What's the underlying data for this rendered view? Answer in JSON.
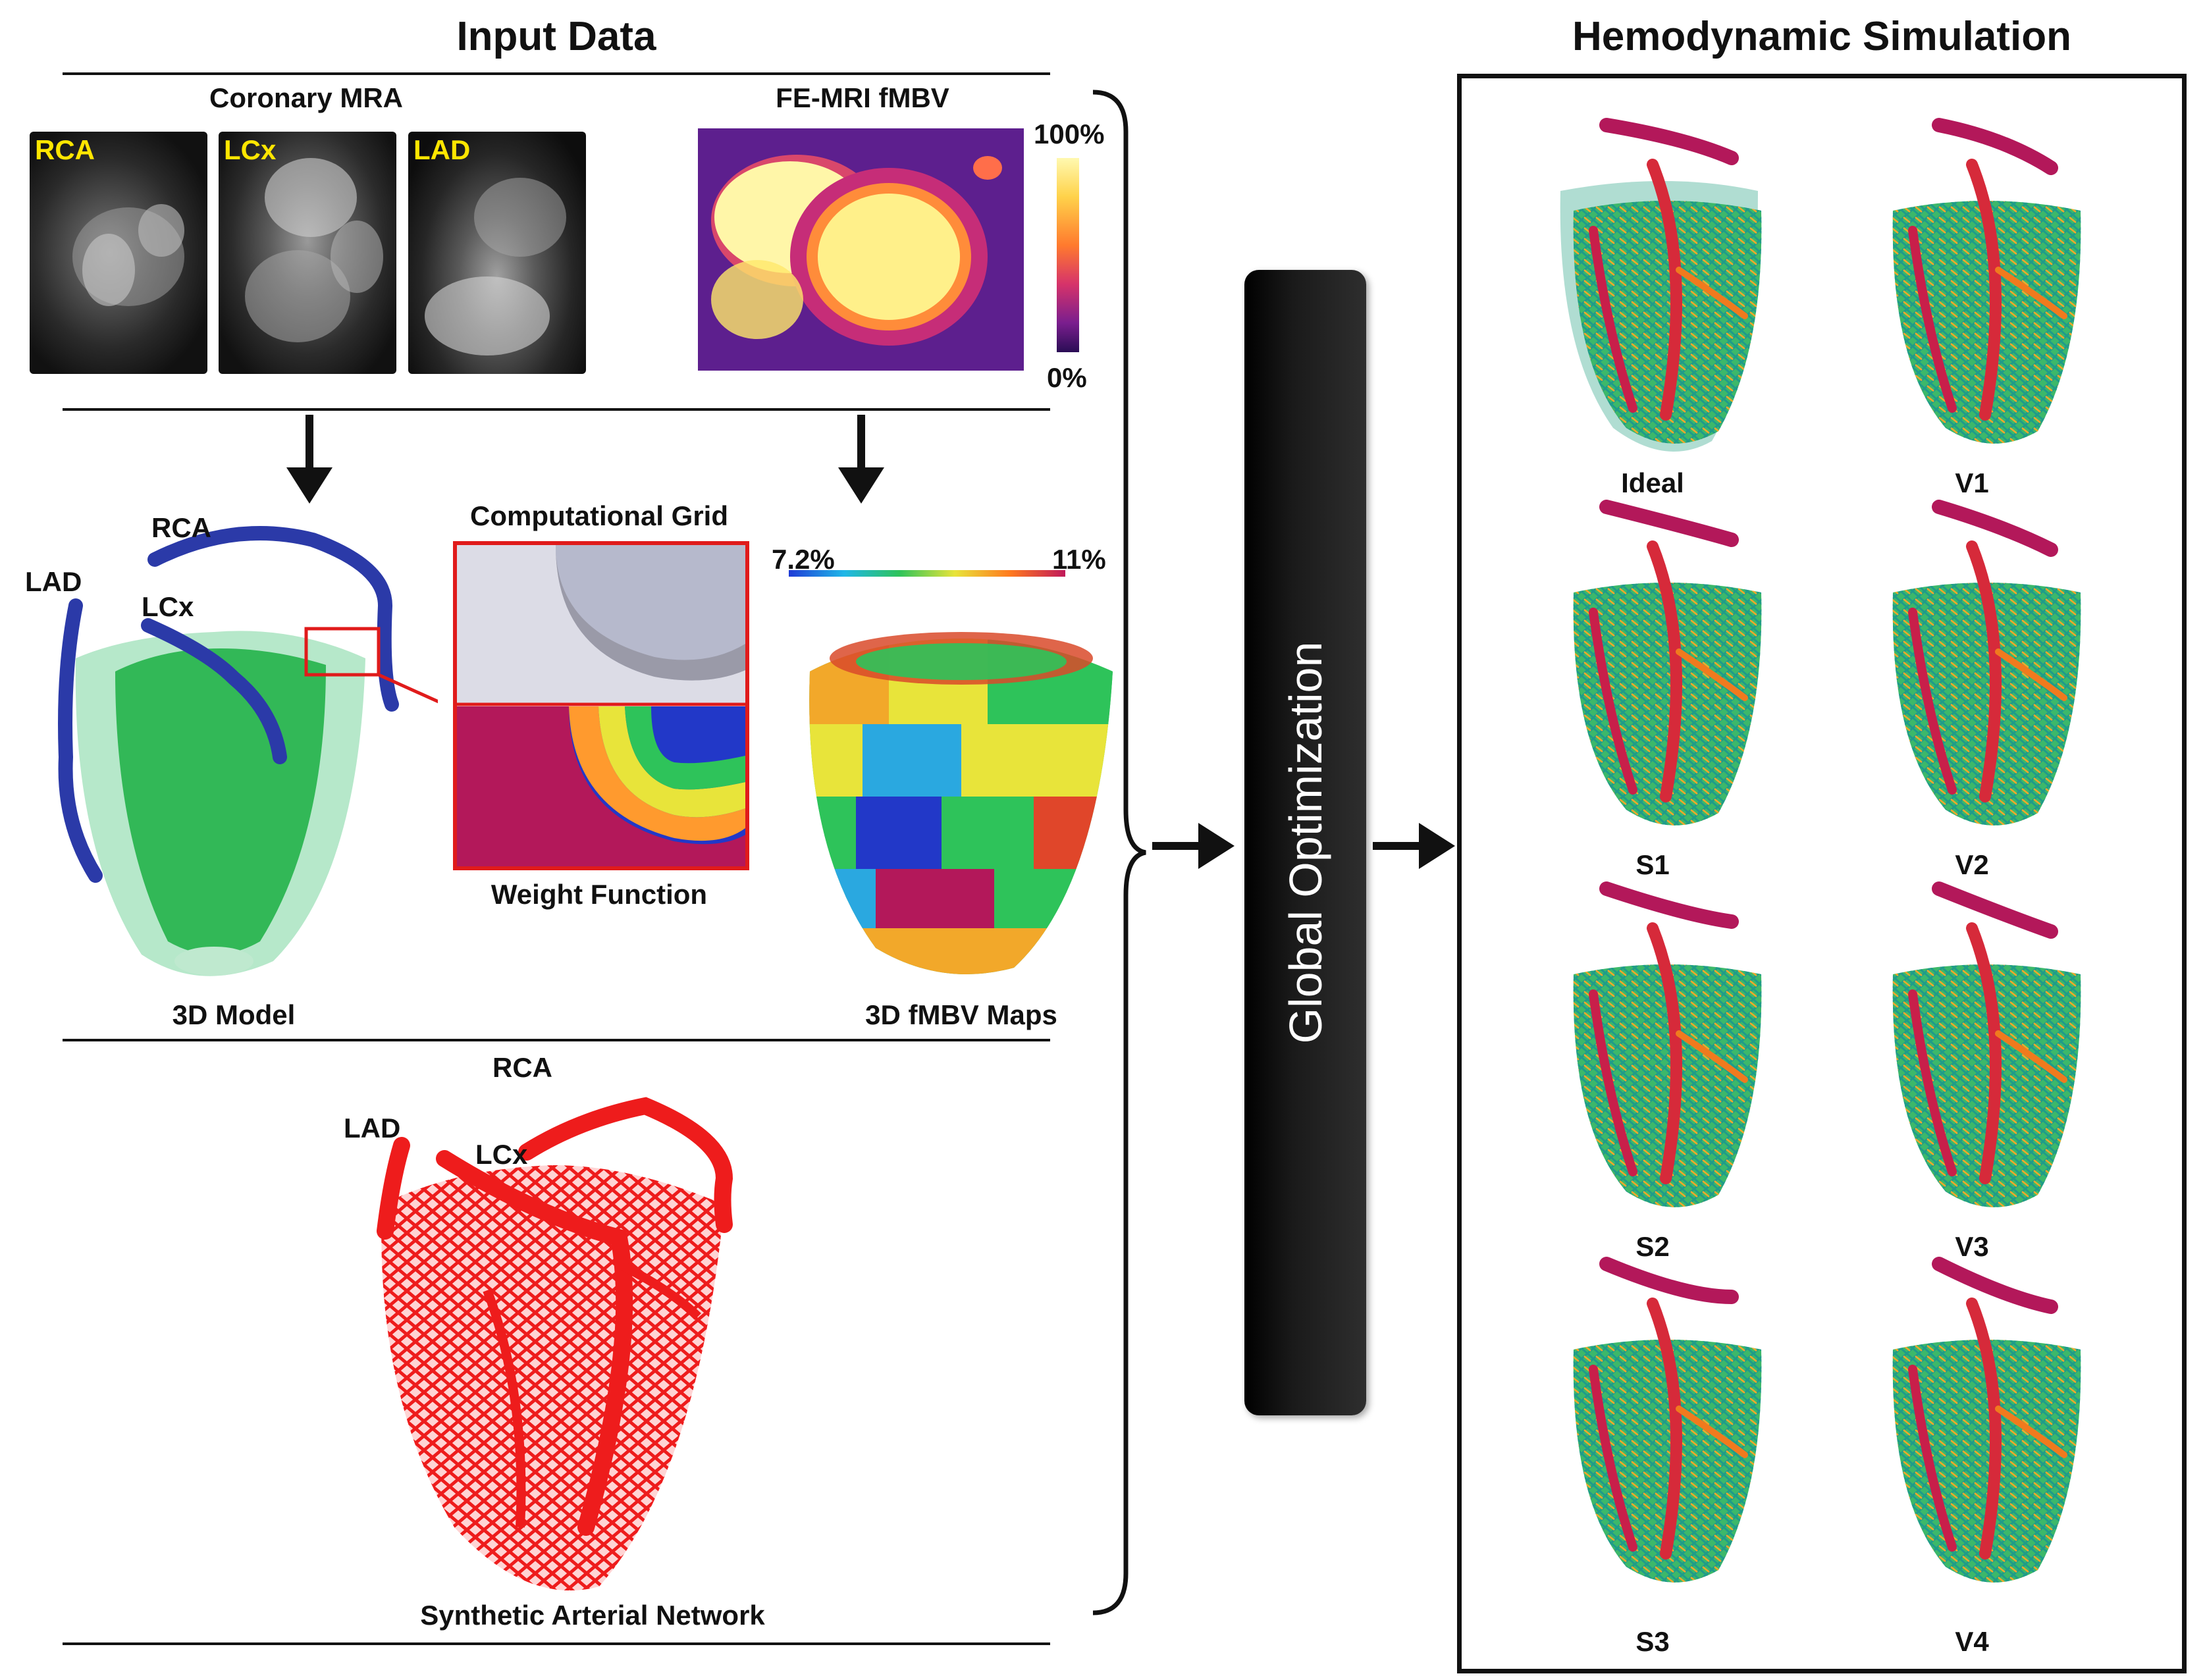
{
  "input_data": {
    "title": "Input Data",
    "coronary_mra": {
      "label": "Coronary MRA",
      "images": [
        {
          "label": "RCA"
        },
        {
          "label": "LCx"
        },
        {
          "label": "LAD"
        }
      ]
    },
    "femri": {
      "label": "FE-MRI fMBV",
      "colorbar_max": "100%",
      "colorbar_min": "0%"
    },
    "model_3d": {
      "label": "3D Model",
      "vessels": {
        "rca": "RCA",
        "lad": "LAD",
        "lcx": "LCx"
      }
    },
    "grid": {
      "title": "Computational Grid",
      "weight_label": "Weight Function"
    },
    "fmbv_maps": {
      "label": "3D fMBV Maps",
      "colorbar_min": "7.2%",
      "colorbar_max": "11%"
    },
    "synthetic": {
      "label": "Synthetic Arterial Network",
      "vessels": {
        "rca": "RCA",
        "lad": "LAD",
        "lcx": "LCx"
      }
    }
  },
  "global_optimization": {
    "label": "Global Optimization"
  },
  "simulation": {
    "title": "Hemodynamic Simulation",
    "results": [
      "Ideal",
      "V1",
      "S1",
      "V2",
      "S2",
      "V3",
      "S3",
      "V4"
    ]
  },
  "colors": {
    "vessel_blue": "#2b3aa8",
    "myocardium_green": "#2ec35a",
    "network_red": "#ee1c1c",
    "vessel_magenta": "#b3185a",
    "grid_frame_red": "#e01b1b"
  }
}
